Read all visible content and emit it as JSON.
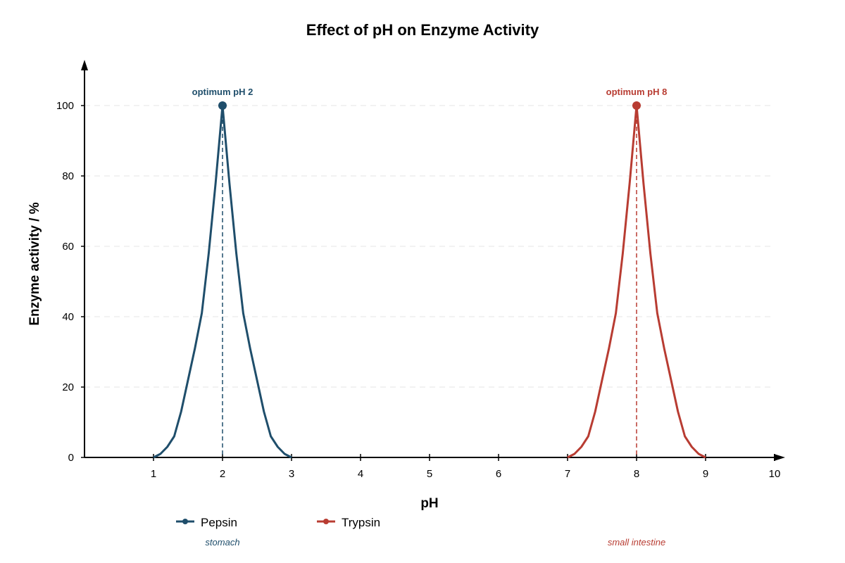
{
  "chart_data": {
    "type": "line",
    "title": "Effect of pH on Enzyme Activity",
    "xlabel": "pH",
    "ylabel": "Enzyme activity / %",
    "xlim": [
      0,
      10
    ],
    "ylim": [
      0,
      110
    ],
    "x_ticks": [
      1,
      2,
      3,
      4,
      5,
      6,
      7,
      8,
      9,
      10
    ],
    "y_ticks": [
      0,
      20,
      40,
      60,
      80,
      100
    ],
    "grid": "horizontal dashed",
    "legend_position": "bottom",
    "series": [
      {
        "name": "Pepsin",
        "color": "#1f4e6b",
        "location": "stomach",
        "optimum_label": "optimum pH 2",
        "optimum": {
          "x": 2,
          "y": 100
        },
        "x": [
          1.0,
          1.1,
          1.2,
          1.3,
          1.4,
          1.5,
          1.6,
          1.7,
          1.8,
          1.9,
          2.0,
          2.1,
          2.2,
          2.3,
          2.4,
          2.5,
          2.6,
          2.7,
          2.8,
          2.9,
          3.0
        ],
        "y": [
          0,
          1,
          3,
          6,
          13,
          22,
          31,
          41,
          58,
          78,
          100,
          78,
          58,
          41,
          31,
          22,
          13,
          6,
          3,
          1,
          0
        ]
      },
      {
        "name": "Trypsin",
        "color": "#b83c32",
        "location": "small intestine",
        "optimum_label": "optimum pH 8",
        "optimum": {
          "x": 8,
          "y": 100
        },
        "x": [
          7.0,
          7.1,
          7.2,
          7.3,
          7.4,
          7.5,
          7.6,
          7.7,
          7.8,
          7.9,
          8.0,
          8.1,
          8.2,
          8.3,
          8.4,
          8.5,
          8.6,
          8.7,
          8.8,
          8.9,
          9.0
        ],
        "y": [
          0,
          1,
          3,
          6,
          13,
          22,
          31,
          41,
          58,
          78,
          100,
          78,
          58,
          41,
          31,
          22,
          13,
          6,
          3,
          1,
          0
        ]
      }
    ]
  }
}
